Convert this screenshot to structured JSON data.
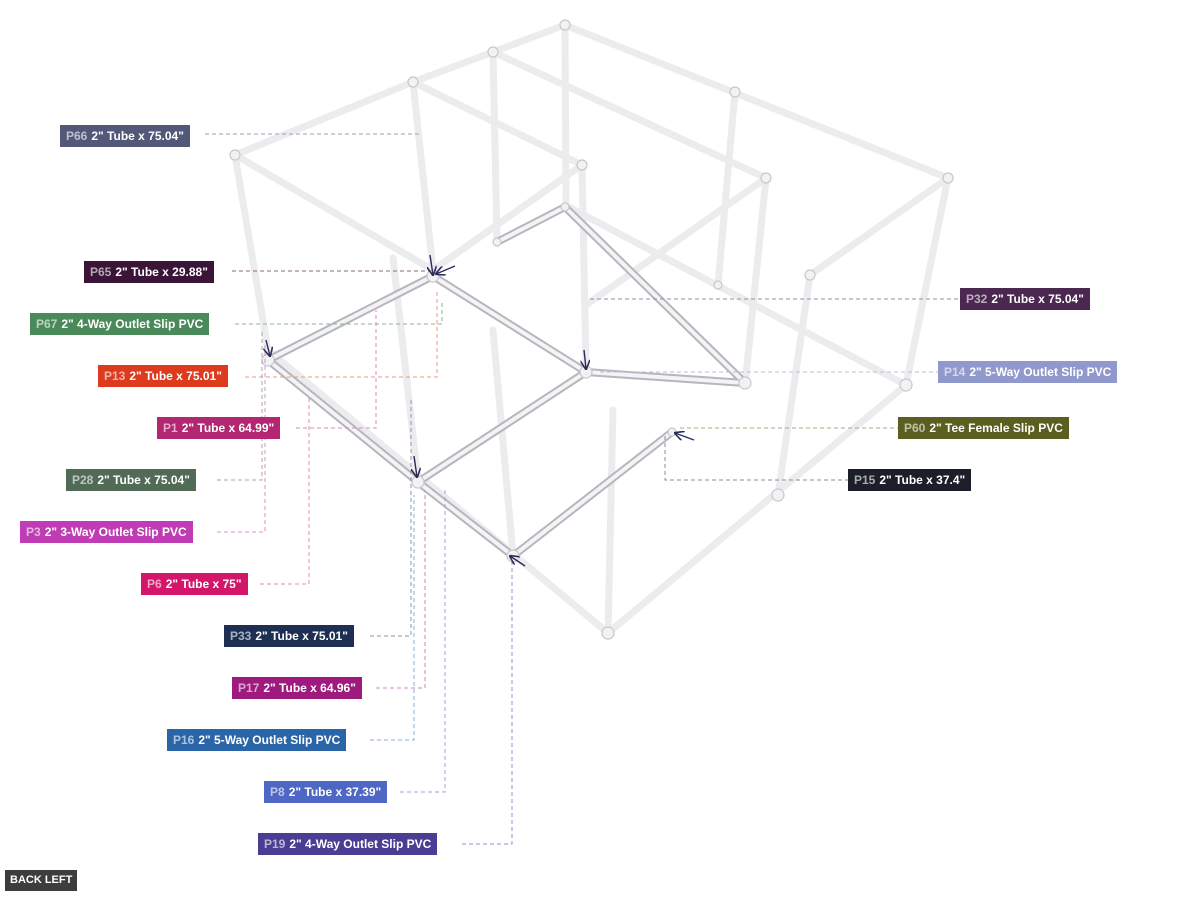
{
  "labels": [
    {
      "id": "P66",
      "text": "2\" Tube x 75.04\"",
      "color": "#545878"
    },
    {
      "id": "P65",
      "text": "2\" Tube x 29.88\"",
      "color": "#3a1537"
    },
    {
      "id": "P67",
      "text": "2\" 4-Way Outlet Slip PVC",
      "color": "#4a8a5a"
    },
    {
      "id": "P13",
      "text": "2\" Tube x 75.01\"",
      "color": "#dc3b1e"
    },
    {
      "id": "P1",
      "text": "2\" Tube x 64.99\"",
      "color": "#b32672"
    },
    {
      "id": "P28",
      "text": "2\" Tube x 75.04\"",
      "color": "#526b57"
    },
    {
      "id": "P3",
      "text": "2\" 3-Way Outlet Slip PVC",
      "color": "#c03cb4"
    },
    {
      "id": "P6",
      "text": "2\" Tube x 75\"",
      "color": "#d3166a"
    },
    {
      "id": "P33",
      "text": "2\" Tube x 75.01\"",
      "color": "#1f2f54"
    },
    {
      "id": "P17",
      "text": "2\" Tube x 64.96\"",
      "color": "#9e1a7d"
    },
    {
      "id": "P16",
      "text": "2\" 5-Way Outlet Slip PVC",
      "color": "#2a65a8"
    },
    {
      "id": "P8",
      "text": "2\" Tube x 37.39\"",
      "color": "#4e66c4"
    },
    {
      "id": "P19",
      "text": "2\" 4-Way Outlet Slip PVC",
      "color": "#4c3c94"
    },
    {
      "id": "P32",
      "text": "2\" Tube x 75.04\"",
      "color": "#4b2850"
    },
    {
      "id": "P14",
      "text": "2\" 5-Way Outlet Slip PVC",
      "color": "#9098cc"
    },
    {
      "id": "P60",
      "text": "2\" Tee Female Slip PVC",
      "color": "#5a5e1e"
    },
    {
      "id": "P15",
      "text": "2\" Tube x 37.4\"",
      "color": "#1c1e2a"
    }
  ],
  "view_button": "BACK LEFT",
  "icons": {
    "pointer_arrow": "arrow-icon"
  }
}
